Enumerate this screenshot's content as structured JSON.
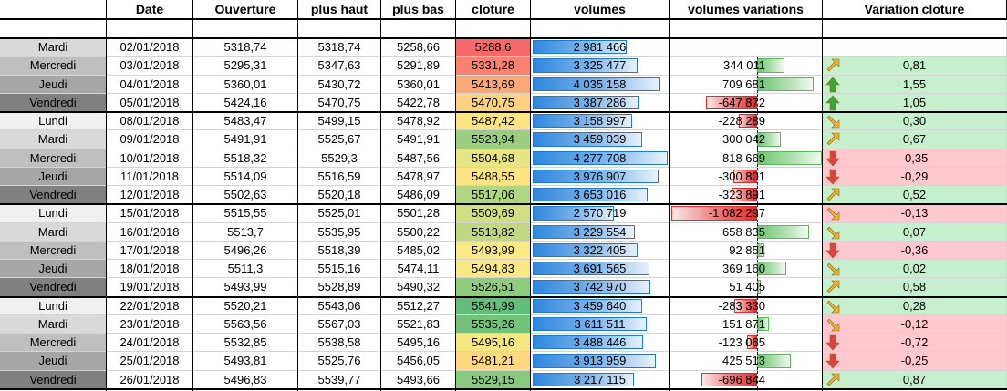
{
  "headers": {
    "date": "Date",
    "open": "Ouverture",
    "high": "plus haut",
    "low": "plus bas",
    "close": "cloture",
    "volume": "volumes",
    "volvar": "volumes variations",
    "closevar": "Variation cloture"
  },
  "day_colors": {
    "Lundi": "#f0f0f0",
    "Mardi": "#d9d9d9",
    "Mercredi": "#bfbfbf",
    "Jeudi": "#a6a6a6",
    "Vendredi": "#808080"
  },
  "rows": [
    {
      "day": "Mardi",
      "date": "02/01/2018",
      "open": "5318,74",
      "high": "5318,74",
      "low": "5258,66",
      "close": "5288,6",
      "close_color": "#f8696b",
      "volume": "2 981 466",
      "volume_value": 2981466,
      "volvar": "",
      "volvar_value": null,
      "closevar": "",
      "closevar_trend": "none"
    },
    {
      "day": "Mercredi",
      "date": "03/01/2018",
      "open": "5295,31",
      "high": "5347,63",
      "low": "5291,89",
      "close": "5331,28",
      "close_color": "#f98370",
      "volume": "3 325 477",
      "volume_value": 3325477,
      "volvar": "344 011",
      "volvar_value": 344011,
      "closevar": "0,81",
      "closevar_trend": "up-right"
    },
    {
      "day": "Jeudi",
      "date": "04/01/2018",
      "open": "5360,01",
      "high": "5430,72",
      "low": "5360,01",
      "close": "5413,69",
      "close_color": "#fbaa77",
      "volume": "4 035 158",
      "volume_value": 4035158,
      "volvar": "709 681",
      "volvar_value": 709681,
      "closevar": "1,55",
      "closevar_trend": "up"
    },
    {
      "day": "Vendredi",
      "date": "05/01/2018",
      "open": "5424,16",
      "high": "5470,75",
      "low": "5422,78",
      "close": "5470,75",
      "close_color": "#fdd17f",
      "volume": "3 387 286",
      "volume_value": 3387286,
      "volvar": "-647 872",
      "volvar_value": -647872,
      "closevar": "1,05",
      "closevar_trend": "up"
    },
    {
      "day": "Lundi",
      "date": "08/01/2018",
      "open": "5483,47",
      "high": "5499,15",
      "low": "5478,92",
      "close": "5487,42",
      "close_color": "#fee382",
      "volume": "3 158 997",
      "volume_value": 3158997,
      "volvar": "-228 289",
      "volvar_value": -228289,
      "closevar": "0,30",
      "closevar_trend": "down-right"
    },
    {
      "day": "Mardi",
      "date": "09/01/2018",
      "open": "5491,91",
      "high": "5525,67",
      "low": "5491,91",
      "close": "5523,94",
      "close_color": "#9bcf7f",
      "volume": "3 459 039",
      "volume_value": 3459039,
      "volvar": "300 042",
      "volvar_value": 300042,
      "closevar": "0,67",
      "closevar_trend": "up-right"
    },
    {
      "day": "Mercredi",
      "date": "10/01/2018",
      "open": "5518,32",
      "high": "5529,3",
      "low": "5487,56",
      "close": "5504,68",
      "close_color": "#e6e483",
      "volume": "4 277 708",
      "volume_value": 4277708,
      "volvar": "818 669",
      "volvar_value": 818669,
      "closevar": "-0,35",
      "closevar_trend": "down"
    },
    {
      "day": "Jeudi",
      "date": "11/01/2018",
      "open": "5514,09",
      "high": "5516,59",
      "low": "5478,97",
      "close": "5488,55",
      "close_color": "#fee482",
      "volume": "3 976 907",
      "volume_value": 3976907,
      "volvar": "-300 801",
      "volvar_value": -300801,
      "closevar": "-0,29",
      "closevar_trend": "down"
    },
    {
      "day": "Vendredi",
      "date": "12/01/2018",
      "open": "5502,63",
      "high": "5520,18",
      "low": "5486,09",
      "close": "5517,06",
      "close_color": "#b1d580",
      "volume": "3 653 016",
      "volume_value": 3653016,
      "volvar": "-323 891",
      "volvar_value": -323891,
      "closevar": "0,52",
      "closevar_trend": "up-right"
    },
    {
      "day": "Lundi",
      "date": "15/01/2018",
      "open": "5515,55",
      "high": "5525,01",
      "low": "5501,28",
      "close": "5509,69",
      "close_color": "#d1de82",
      "volume": "2 570 719",
      "volume_value": 2570719,
      "volvar": "-1 082 297",
      "volvar_value": -1082297,
      "closevar": "-0,13",
      "closevar_trend": "down-right"
    },
    {
      "day": "Mardi",
      "date": "16/01/2018",
      "open": "5513,7",
      "high": "5535,95",
      "low": "5500,22",
      "close": "5513,82",
      "close_color": "#c0d981",
      "volume": "3 229 554",
      "volume_value": 3229554,
      "volvar": "658 835",
      "volvar_value": 658835,
      "closevar": "0,07",
      "closevar_trend": "down-right"
    },
    {
      "day": "Mercredi",
      "date": "17/01/2018",
      "open": "5496,26",
      "high": "5518,39",
      "low": "5485,02",
      "close": "5493,99",
      "close_color": "#fbe983",
      "volume": "3 322 405",
      "volume_value": 3322405,
      "volvar": "92 851",
      "volvar_value": 92851,
      "closevar": "-0,36",
      "closevar_trend": "down"
    },
    {
      "day": "Jeudi",
      "date": "18/01/2018",
      "open": "5511,3",
      "high": "5515,16",
      "low": "5474,11",
      "close": "5494,83",
      "close_color": "#fae983",
      "volume": "3 691 565",
      "volume_value": 3691565,
      "volvar": "369 160",
      "volvar_value": 369160,
      "closevar": "0,02",
      "closevar_trend": "down-right"
    },
    {
      "day": "Vendredi",
      "date": "19/01/2018",
      "open": "5493,99",
      "high": "5528,89",
      "low": "5490,32",
      "close": "5526,51",
      "close_color": "#90cc7e",
      "volume": "3 742 970",
      "volume_value": 3742970,
      "volvar": "51 405",
      "volvar_value": 51405,
      "closevar": "0,58",
      "closevar_trend": "up-right"
    },
    {
      "day": "Lundi",
      "date": "22/01/2018",
      "open": "5520,21",
      "high": "5543,06",
      "low": "5512,27",
      "close": "5541,99",
      "close_color": "#63be7b",
      "volume": "3 459 640",
      "volume_value": 3459640,
      "volvar": "-283 330",
      "volvar_value": -283330,
      "closevar": "0,28",
      "closevar_trend": "down-right"
    },
    {
      "day": "Mardi",
      "date": "23/01/2018",
      "open": "5563,56",
      "high": "5567,03",
      "low": "5521,83",
      "close": "5535,26",
      "close_color": "#74c37c",
      "volume": "3 611 511",
      "volume_value": 3611511,
      "volvar": "151 871",
      "volvar_value": 151871,
      "closevar": "-0,12",
      "closevar_trend": "down-right"
    },
    {
      "day": "Mercredi",
      "date": "24/01/2018",
      "open": "5532,85",
      "high": "5538,58",
      "low": "5495,16",
      "close": "5495,16",
      "close_color": "#f5e883",
      "volume": "3 488 446",
      "volume_value": 3488446,
      "volvar": "-123 065",
      "volvar_value": -123065,
      "closevar": "-0,72",
      "closevar_trend": "down"
    },
    {
      "day": "Jeudi",
      "date": "25/01/2018",
      "open": "5493,81",
      "high": "5525,76",
      "low": "5456,05",
      "close": "5481,21",
      "close_color": "#fed980",
      "volume": "3 913 959",
      "volume_value": 3913959,
      "volvar": "425 513",
      "volvar_value": 425513,
      "closevar": "-0,25",
      "closevar_trend": "down"
    },
    {
      "day": "Vendredi",
      "date": "26/01/2018",
      "open": "5496,83",
      "high": "5539,77",
      "low": "5493,66",
      "close": "5529,15",
      "close_color": "#87c97d",
      "volume": "3 217 115",
      "volume_value": 3217115,
      "volvar": "-696 844",
      "volvar_value": -696844,
      "closevar": "0,87",
      "closevar_trend": "up-right"
    }
  ]
}
